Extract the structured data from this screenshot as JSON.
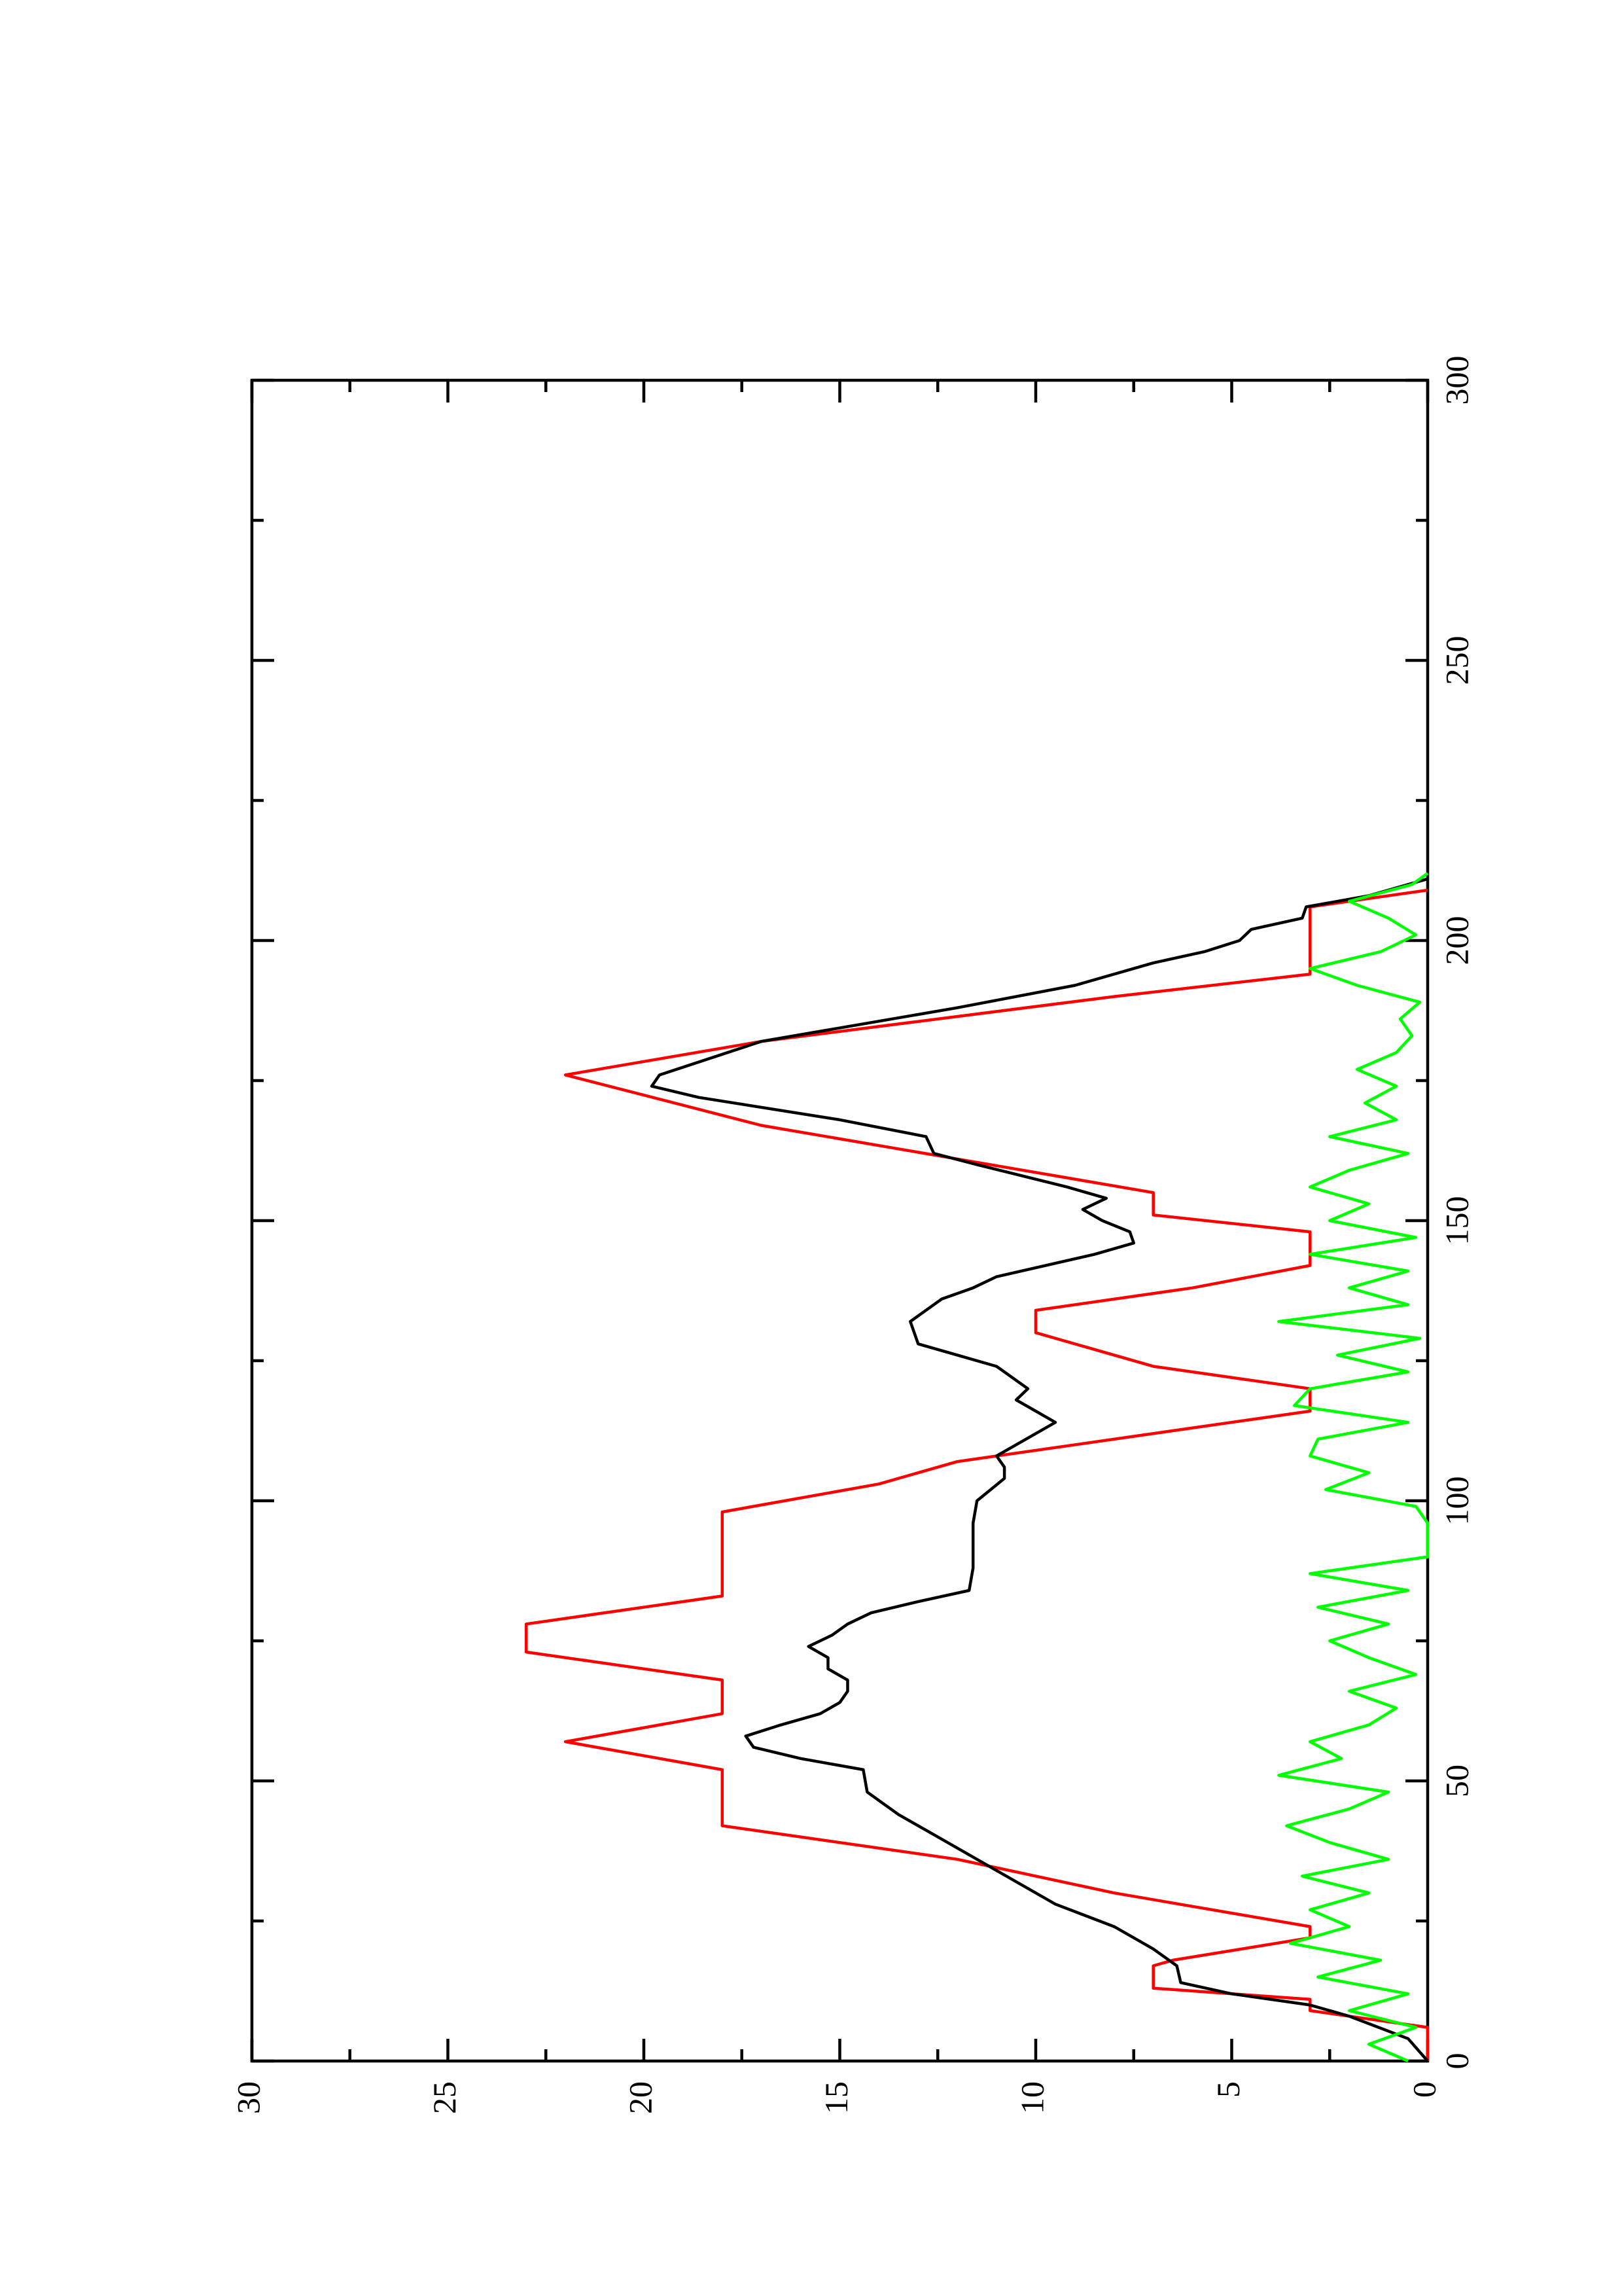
{
  "chart_data": {
    "type": "line",
    "xlim": [
      0,
      300
    ],
    "ylim": [
      0,
      30
    ],
    "xticks": [
      0,
      50,
      100,
      150,
      200,
      250,
      300
    ],
    "yticks": [
      0,
      5,
      10,
      15,
      20,
      25,
      30
    ],
    "x_minor_ticks": [
      25,
      75,
      125,
      175,
      225,
      275
    ],
    "y_minor_ticks": [
      2.5,
      7.5,
      12.5,
      17.5,
      22.5,
      27.5
    ],
    "series": [
      {
        "color": "#ff0000",
        "x": [
          0,
          6,
          9,
          11,
          13,
          17,
          18,
          22,
          24,
          30,
          36,
          42,
          52,
          57,
          62,
          68,
          73,
          78,
          83,
          98,
          103,
          107,
          116,
          120,
          124,
          130,
          134,
          138,
          142,
          148,
          151,
          155,
          161,
          167,
          176,
          182,
          190,
          194,
          206,
          209
        ],
        "values": [
          0,
          0,
          3,
          3,
          7,
          7,
          6.5,
          3,
          3,
          8,
          12,
          18,
          18,
          22,
          18,
          18,
          23,
          23,
          18,
          18,
          14,
          12,
          3,
          3,
          7,
          10,
          10,
          6,
          3,
          3,
          7,
          7,
          12,
          17,
          22,
          17,
          8,
          3,
          3,
          0
        ]
      },
      {
        "color": "#000000",
        "x": [
          0,
          4,
          8,
          10,
          12,
          14,
          17,
          20,
          24,
          28,
          32,
          36,
          40,
          44,
          48,
          52,
          54,
          56,
          58,
          60,
          62,
          64,
          66,
          68,
          70,
          72,
          74,
          76,
          78,
          80,
          82,
          84,
          88,
          96,
          100,
          104,
          106,
          108,
          112,
          114,
          116,
          118,
          120,
          124,
          126,
          128,
          132,
          136,
          138,
          140,
          144,
          146,
          148,
          150,
          152,
          154,
          156,
          160,
          162,
          165,
          168,
          172,
          174,
          176,
          182,
          188,
          192,
          196,
          198,
          200,
          202,
          204,
          206,
          208,
          211
        ],
        "values": [
          0,
          0.5,
          2,
          3,
          5,
          6.3,
          6.4,
          7,
          8,
          9.5,
          10.5,
          11.5,
          12.5,
          13.5,
          14.3,
          14.4,
          16,
          17.2,
          17.4,
          16.5,
          15.5,
          15,
          14.8,
          14.8,
          15.3,
          15.3,
          15.8,
          15.2,
          14.8,
          14.2,
          13,
          11.7,
          11.6,
          11.6,
          11.5,
          10.8,
          10.8,
          11,
          10,
          9.5,
          10,
          10.5,
          10.2,
          11,
          12,
          13,
          13.2,
          12.4,
          11.6,
          11,
          8.5,
          7.5,
          7.6,
          8.3,
          8.8,
          8.2,
          9.2,
          11.5,
          12.6,
          12.8,
          15,
          18.6,
          19.8,
          19.6,
          17,
          12,
          9,
          7,
          5.7,
          4.8,
          4.5,
          3.2,
          3.1,
          1.5,
          0
        ]
      },
      {
        "color": "#00ff00",
        "x": [
          0,
          3,
          6,
          9,
          12,
          15,
          18,
          21,
          24,
          27,
          30,
          33,
          36,
          39,
          42,
          45,
          48,
          51,
          54,
          57,
          60,
          63,
          66,
          69,
          72,
          75,
          78,
          81,
          84,
          87,
          90,
          93,
          96,
          99,
          102,
          105,
          108,
          111,
          114,
          117,
          120,
          123,
          126,
          129,
          132,
          135,
          138,
          141,
          144,
          147,
          150,
          153,
          156,
          159,
          162,
          165,
          168,
          171,
          174,
          177,
          180,
          183,
          186,
          189,
          192,
          195,
          198,
          201,
          204,
          207,
          210,
          212
        ],
        "values": [
          0.5,
          1.5,
          0.3,
          2,
          0.5,
          2.8,
          1.2,
          3.5,
          2,
          3,
          1.5,
          3.2,
          1,
          2.5,
          3.6,
          2,
          1,
          3.8,
          2.2,
          3,
          1.5,
          0.8,
          2,
          0.3,
          1.5,
          2.5,
          1,
          2.8,
          0.5,
          3,
          0,
          0,
          0,
          0.3,
          2.6,
          1.5,
          3,
          2.8,
          0.5,
          3.4,
          3,
          0.5,
          2.3,
          0.2,
          3.8,
          0.5,
          2,
          0.5,
          3,
          0.3,
          2.5,
          1.5,
          3,
          2,
          0.5,
          2.5,
          0.8,
          1.6,
          0.8,
          1.8,
          0.8,
          0.4,
          0.7,
          0.2,
          1.8,
          3,
          1.2,
          0.3,
          1,
          2,
          0.4,
          0
        ]
      }
    ]
  }
}
